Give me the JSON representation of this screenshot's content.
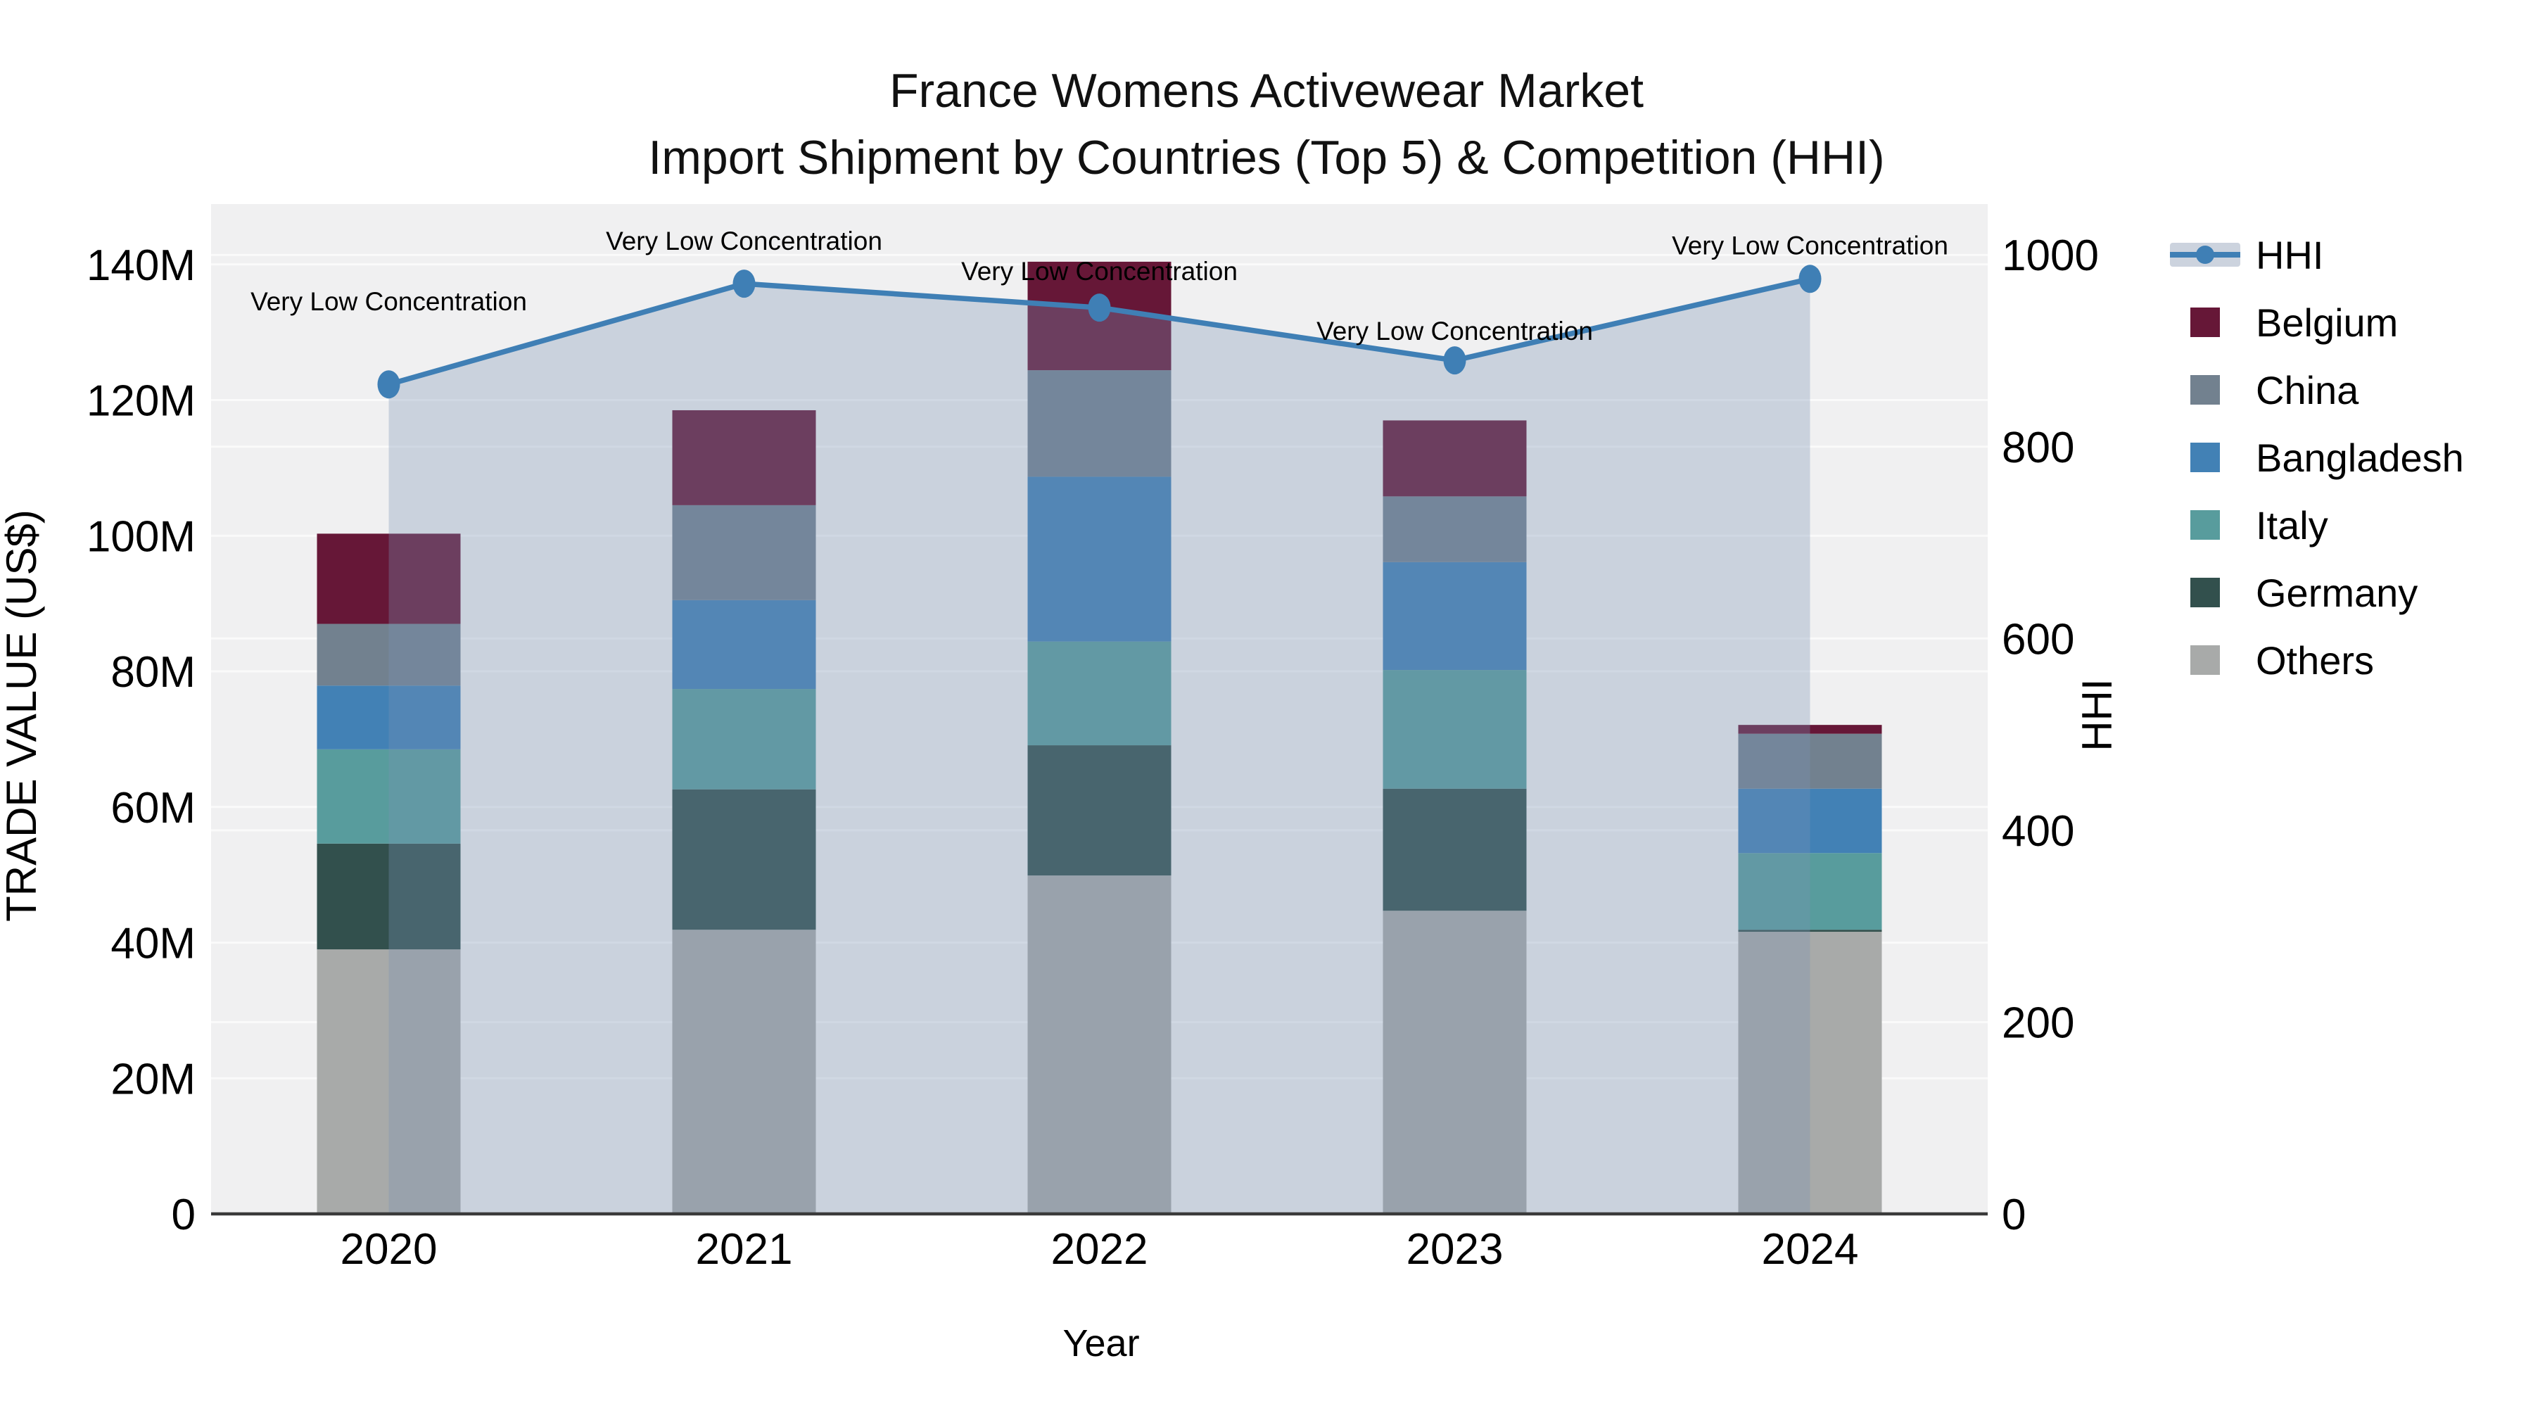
{
  "title": {
    "line1": "France Womens Activewear Market",
    "line2": "Import Shipment by Countries (Top 5) & Competition (HHI)"
  },
  "axes": {
    "x_label": "Year",
    "y_left_label": "TRADE VALUE (US$)",
    "y_right_label": "HHI",
    "y_left_unit": "US$ millions",
    "y_left_max": 148.9,
    "y_right_max": 1053,
    "y_left_ticks": {
      "values": [
        0,
        20,
        40,
        60,
        80,
        100,
        120,
        140
      ],
      "labels": [
        "0",
        "20M",
        "40M",
        "60M",
        "80M",
        "100M",
        "120M",
        "140M"
      ]
    },
    "y_right_ticks": {
      "values": [
        0,
        200,
        400,
        600,
        800,
        1000
      ],
      "labels": [
        "0",
        "200",
        "400",
        "600",
        "800",
        "1000"
      ]
    },
    "grid": "horizontal",
    "plot_background": "#f0f0f1",
    "gridline_color": "#fafafa",
    "axis_line_color": "#3a3a3a"
  },
  "chart_data": {
    "type": [
      "bar",
      "line"
    ],
    "description": "Stacked bars = import trade value by origin country (left axis, US$ millions); line = HHI competition index (right axis) with shaded area.",
    "categories": [
      "2020",
      "2021",
      "2022",
      "2023",
      "2024"
    ],
    "stack_order_note": "series listed bottom-to-top of stack; values in US$ millions",
    "series": [
      {
        "name": "Others",
        "color": "#a8aaa9",
        "values": [
          39.0,
          41.9,
          49.9,
          44.7,
          41.6
        ]
      },
      {
        "name": "Germany",
        "color": "#32504d",
        "values": [
          15.6,
          20.7,
          19.2,
          18.0,
          0.3
        ]
      },
      {
        "name": "Italy",
        "color": "#589c9d",
        "values": [
          13.9,
          14.8,
          15.3,
          17.5,
          11.3
        ]
      },
      {
        "name": "Bangladesh",
        "color": "#4281b5",
        "values": [
          9.4,
          13.1,
          24.3,
          15.9,
          9.5
        ]
      },
      {
        "name": "China",
        "color": "#72818f",
        "values": [
          9.1,
          14.0,
          15.7,
          9.7,
          8.1
        ]
      },
      {
        "name": "Belgium",
        "color": "#661737",
        "values": [
          13.3,
          14.0,
          16.0,
          11.2,
          1.3
        ]
      }
    ],
    "bar_totals": [
      100.3,
      118.5,
      140.4,
      117.0,
      72.1
    ],
    "hhi_line": {
      "name": "HHI",
      "color": "#3f7fb5",
      "area_fill_color": "rgba(120,145,180,0.32)",
      "values": [
        865,
        970,
        945,
        890,
        975
      ],
      "annotations": [
        {
          "text": "Very Low Concentration",
          "dy": 118
        },
        {
          "text": "Very Low Concentration",
          "dy": 61
        },
        {
          "text": "Very Low Concentration",
          "dy": 52
        },
        {
          "text": "Very Low Concentration",
          "dy": 42
        },
        {
          "text": "Very Low Concentration",
          "dy": 48
        }
      ]
    }
  },
  "legend": {
    "position": "right",
    "items": [
      {
        "label": "HHI",
        "type": "line"
      },
      {
        "label": "Belgium",
        "type": "patch"
      },
      {
        "label": "China",
        "type": "patch"
      },
      {
        "label": "Bangladesh",
        "type": "patch"
      },
      {
        "label": "Italy",
        "type": "patch"
      },
      {
        "label": "Germany",
        "type": "patch"
      },
      {
        "label": "Others",
        "type": "patch"
      }
    ]
  }
}
